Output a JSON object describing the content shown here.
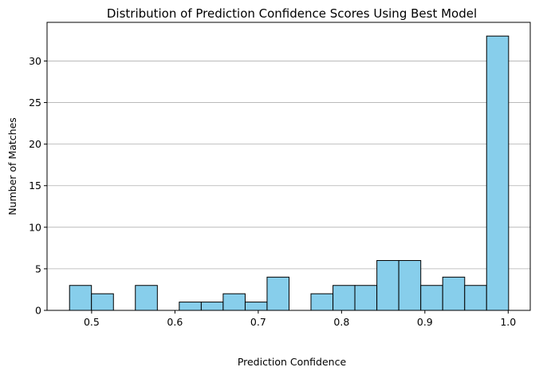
{
  "chart_data": {
    "type": "bar",
    "title": "Distribution of Prediction Confidence Scores Using Best Model",
    "xlabel": "Prediction Confidence",
    "ylabel": "Number of Matches",
    "xlim": [
      0.4465,
      1.0265
    ],
    "ylim": [
      0,
      34.65
    ],
    "bin_edges": [
      0.4735,
      0.4998,
      0.5262,
      0.5525,
      0.5789,
      0.6052,
      0.6316,
      0.6579,
      0.6843,
      0.7106,
      0.737,
      0.7633,
      0.7897,
      0.816,
      0.8424,
      0.8687,
      0.8951,
      0.9214,
      0.9478,
      0.9741,
      1.0005
    ],
    "values": [
      3,
      2,
      0,
      3,
      0,
      1,
      1,
      2,
      1,
      4,
      0,
      2,
      3,
      3,
      6,
      6,
      3,
      4,
      3,
      33
    ],
    "xticks": [
      0.5,
      0.6,
      0.7,
      0.8,
      0.9,
      1.0
    ],
    "xtick_labels": [
      "0.5",
      "0.6",
      "0.7",
      "0.8",
      "0.9",
      "1.0"
    ],
    "yticks": [
      0,
      5,
      10,
      15,
      20,
      25,
      30
    ],
    "ytick_labels": [
      "0",
      "5",
      "10",
      "15",
      "20",
      "25",
      "30"
    ],
    "grid": "y-major",
    "colors": {
      "bar_fill": "#87ceeb",
      "bar_edge": "#000000",
      "grid": "#b0b0b0"
    }
  }
}
